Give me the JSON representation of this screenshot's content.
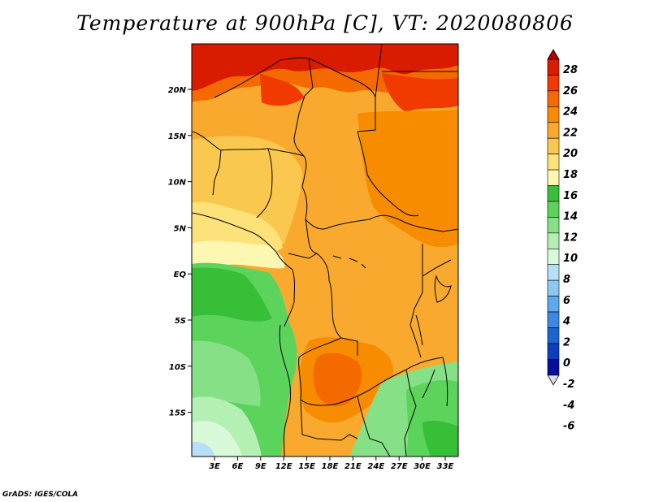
{
  "title": "Temperature at 900hPa [C], VT: 2020080806",
  "credit": "GrADS: IGES/COLA",
  "lat_labels": [
    "20N",
    "15N",
    "10N",
    "5N",
    "EQ",
    "5S",
    "10S",
    "15S"
  ],
  "lon_labels": [
    "3E",
    "6E",
    "9E",
    "12E",
    "15E",
    "18E",
    "21E",
    "24E",
    "27E",
    "30E",
    "33E"
  ],
  "colorbar": {
    "labels": [
      "28",
      "26",
      "24",
      "22",
      "20",
      "18",
      "16",
      "14",
      "12",
      "10",
      "8",
      "6",
      "4",
      "2",
      "0",
      "-2",
      "-4",
      "-6"
    ],
    "colors": [
      "#d91c00",
      "#f03a00",
      "#f46a00",
      "#f78c00",
      "#f9aa2e",
      "#fbc84f",
      "#fde27a",
      "#fdf7b2",
      "#38bf38",
      "#5cd45c",
      "#86e186",
      "#b4f0b4",
      "#d9fad9",
      "#b8dff8",
      "#8ec8f2",
      "#5ea8ec",
      "#3c88e2",
      "#1c64d0",
      "#0c3ec0",
      "#04109a"
    ],
    "over_color": "#b40000",
    "under_color": "#dcd8f0"
  }
}
